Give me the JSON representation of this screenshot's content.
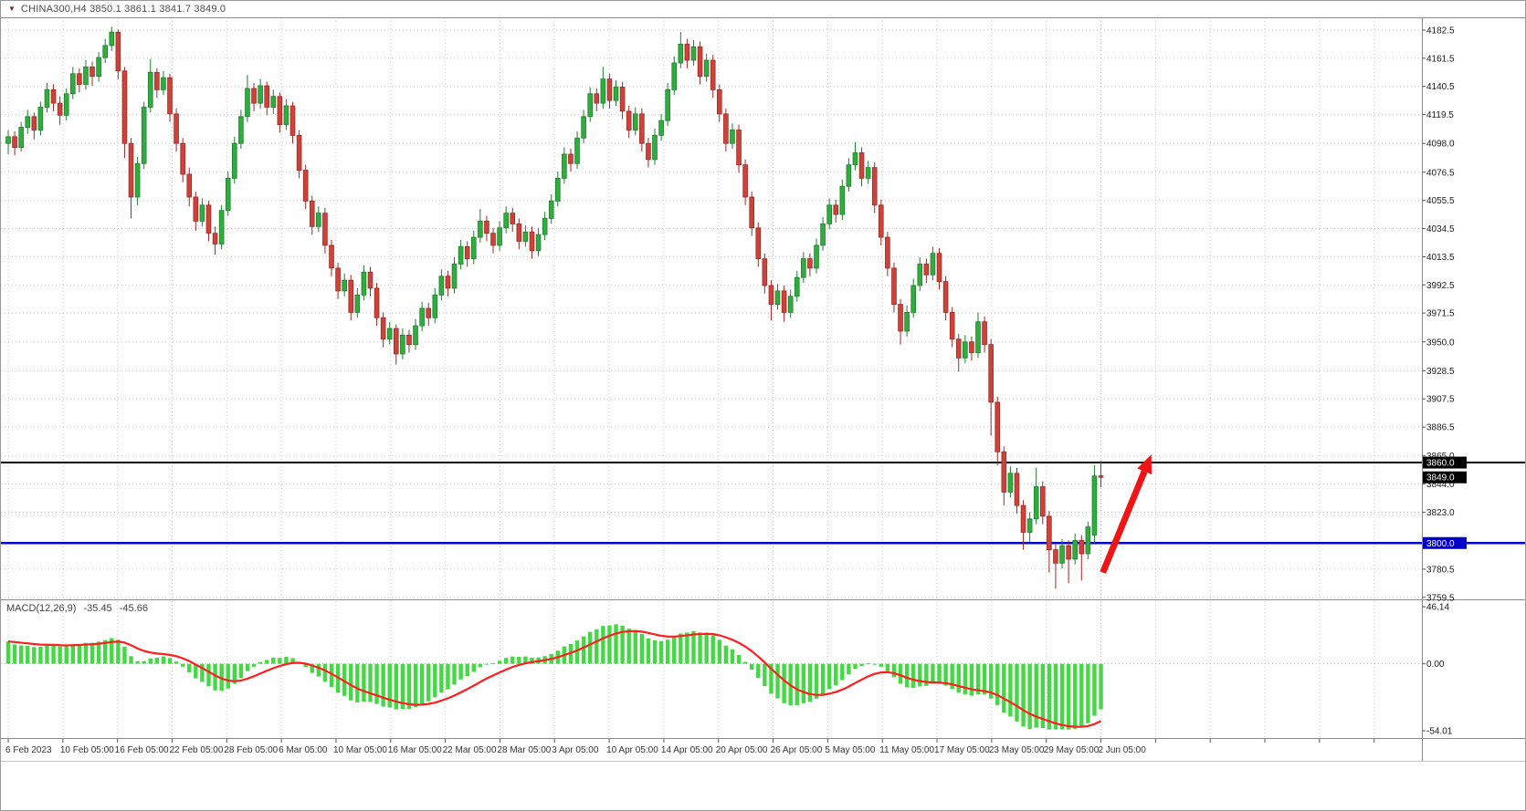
{
  "window": {
    "title": "CHINA300,H4  3850.1 3861.1 3841.7 3849.0",
    "marker_icon": "collapse-arrow"
  },
  "indicator": {
    "label": "MACD(12,26,9)",
    "macd_value": "-35.45",
    "signal_value": "-45.66",
    "params": [
      12,
      26,
      9
    ]
  },
  "colors": {
    "bull": "#2fae3e",
    "bull_border": "#1d7f2c",
    "bear": "#cf423a",
    "bear_border": "#9c2a24",
    "grid": "#c9c9c9",
    "separator": "#8a8a8a",
    "macd_hist": "#44d944",
    "macd_signal": "#ff1e1e",
    "level_black": "#000000",
    "level_blue": "#0000c8",
    "arrow": "#f01414",
    "axis_text": "#1a1a1a",
    "date_text": "#333333",
    "tag_text": "#ffffff"
  },
  "chart_data": {
    "type": "candlestick",
    "symbol": "CHINA300",
    "timeframe": "H4",
    "current_bar": {
      "open": "3850.1",
      "high": "3861.1",
      "low": "3841.7",
      "close": "3849.0"
    },
    "ylim": [
      3758,
      4192
    ],
    "y_ticks": [
      "4182.5",
      "4161.5",
      "4140.5",
      "4119.5",
      "4098.0",
      "4076.5",
      "4055.5",
      "4034.5",
      "4013.5",
      "3992.5",
      "3971.5",
      "3950.0",
      "3928.5",
      "3907.5",
      "3886.5",
      "3865.0",
      "3844.0",
      "3823.0",
      "3780.5",
      "3759.5"
    ],
    "x_labels": [
      "6 Feb 2023",
      "10 Feb 05:00",
      "16 Feb 05:00",
      "22 Feb 05:00",
      "28 Feb 05:00",
      "6 Mar 05:00",
      "10 Mar 05:00",
      "16 Mar 05:00",
      "22 Mar 05:00",
      "28 Mar 05:00",
      "3 Apr 05:00",
      "10 Apr 05:00",
      "14 Apr 05:00",
      "20 Apr 05:00",
      "26 Apr 05:00",
      "5 May 05:00",
      "11 May 05:00",
      "17 May 05:00",
      "23 May 05:00",
      "29 May 05:00",
      "2 Jun 05:00"
    ],
    "ohlc": [
      [
        4098,
        4108,
        4090,
        4103
      ],
      [
        4103,
        4107,
        4089,
        4095
      ],
      [
        4095,
        4114,
        4092,
        4110
      ],
      [
        4110,
        4123,
        4105,
        4118
      ],
      [
        4118,
        4121,
        4101,
        4108
      ],
      [
        4108,
        4129,
        4104,
        4125
      ],
      [
        4125,
        4143,
        4121,
        4138
      ],
      [
        4138,
        4142,
        4122,
        4128
      ],
      [
        4128,
        4133,
        4112,
        4119
      ],
      [
        4119,
        4139,
        4115,
        4135
      ],
      [
        4135,
        4155,
        4131,
        4150
      ],
      [
        4150,
        4154,
        4136,
        4142
      ],
      [
        4142,
        4160,
        4138,
        4155
      ],
      [
        4155,
        4159,
        4141,
        4148
      ],
      [
        4148,
        4166,
        4144,
        4162
      ],
      [
        4162,
        4176,
        4158,
        4171
      ],
      [
        4171,
        4185,
        4167,
        4181
      ],
      [
        4181,
        4183,
        4146,
        4152
      ],
      [
        4152,
        4155,
        4087,
        4098
      ],
      [
        4098,
        4102,
        4042,
        4058
      ],
      [
        4058,
        4088,
        4052,
        4083
      ],
      [
        4083,
        4129,
        4079,
        4125
      ],
      [
        4125,
        4161,
        4121,
        4151
      ],
      [
        4151,
        4154,
        4132,
        4138
      ],
      [
        4138,
        4152,
        4134,
        4147
      ],
      [
        4147,
        4150,
        4114,
        4120
      ],
      [
        4120,
        4124,
        4092,
        4098
      ],
      [
        4098,
        4102,
        4069,
        4075
      ],
      [
        4075,
        4080,
        4051,
        4058
      ],
      [
        4058,
        4062,
        4033,
        4040
      ],
      [
        4040,
        4057,
        4036,
        4052
      ],
      [
        4052,
        4055,
        4025,
        4031
      ],
      [
        4031,
        4036,
        4015,
        4023
      ],
      [
        4023,
        4052,
        4019,
        4048
      ],
      [
        4048,
        4077,
        4044,
        4072
      ],
      [
        4072,
        4103,
        4068,
        4098
      ],
      [
        4098,
        4123,
        4094,
        4118
      ],
      [
        4118,
        4149,
        4114,
        4139
      ],
      [
        4139,
        4143,
        4122,
        4128
      ],
      [
        4128,
        4146,
        4124,
        4141
      ],
      [
        4141,
        4144,
        4119,
        4125
      ],
      [
        4125,
        4138,
        4120,
        4133
      ],
      [
        4133,
        4136,
        4106,
        4112
      ],
      [
        4112,
        4131,
        4108,
        4126
      ],
      [
        4126,
        4129,
        4098,
        4104
      ],
      [
        4104,
        4108,
        4072,
        4078
      ],
      [
        4078,
        4082,
        4049,
        4055
      ],
      [
        4055,
        4059,
        4030,
        4036
      ],
      [
        4036,
        4051,
        4032,
        4046
      ],
      [
        4046,
        4050,
        4016,
        4022
      ],
      [
        4022,
        4026,
        3999,
        4005
      ],
      [
        4005,
        4009,
        3982,
        3988
      ],
      [
        3988,
        4001,
        3984,
        3996
      ],
      [
        3996,
        4000,
        3966,
        3972
      ],
      [
        3972,
        3990,
        3968,
        3985
      ],
      [
        3985,
        4007,
        3981,
        4002
      ],
      [
        4002,
        4006,
        3984,
        3990
      ],
      [
        3990,
        3994,
        3962,
        3968
      ],
      [
        3968,
        3972,
        3946,
        3952
      ],
      [
        3952,
        3965,
        3948,
        3960
      ],
      [
        3960,
        3963,
        3933,
        3941
      ],
      [
        3941,
        3960,
        3937,
        3955
      ],
      [
        3955,
        3959,
        3942,
        3948
      ],
      [
        3948,
        3967,
        3944,
        3962
      ],
      [
        3962,
        3980,
        3958,
        3975
      ],
      [
        3975,
        3979,
        3962,
        3968
      ],
      [
        3968,
        3990,
        3964,
        3985
      ],
      [
        3985,
        4004,
        3981,
        3999
      ],
      [
        3999,
        4003,
        3984,
        3990
      ],
      [
        3990,
        4013,
        3986,
        4008
      ],
      [
        4008,
        4026,
        4004,
        4021
      ],
      [
        4021,
        4025,
        4006,
        4012
      ],
      [
        4012,
        4033,
        4008,
        4028
      ],
      [
        4028,
        4049,
        4024,
        4040
      ],
      [
        4040,
        4044,
        4025,
        4031
      ],
      [
        4031,
        4035,
        4016,
        4022
      ],
      [
        4022,
        4040,
        4018,
        4035
      ],
      [
        4035,
        4051,
        4031,
        4046
      ],
      [
        4046,
        4050,
        4032,
        4038
      ],
      [
        4038,
        4042,
        4019,
        4025
      ],
      [
        4025,
        4037,
        4021,
        4032
      ],
      [
        4032,
        4036,
        4012,
        4018
      ],
      [
        4018,
        4035,
        4014,
        4030
      ],
      [
        4030,
        4047,
        4026,
        4042
      ],
      [
        4042,
        4060,
        4038,
        4055
      ],
      [
        4055,
        4077,
        4051,
        4072
      ],
      [
        4072,
        4095,
        4068,
        4090
      ],
      [
        4090,
        4094,
        4077,
        4083
      ],
      [
        4083,
        4107,
        4079,
        4102
      ],
      [
        4102,
        4123,
        4098,
        4118
      ],
      [
        4118,
        4140,
        4114,
        4135
      ],
      [
        4135,
        4139,
        4122,
        4128
      ],
      [
        4128,
        4155,
        4124,
        4146
      ],
      [
        4146,
        4150,
        4124,
        4130
      ],
      [
        4130,
        4145,
        4126,
        4140
      ],
      [
        4140,
        4144,
        4116,
        4122
      ],
      [
        4122,
        4126,
        4102,
        4108
      ],
      [
        4108,
        4125,
        4104,
        4120
      ],
      [
        4120,
        4124,
        4092,
        4098
      ],
      [
        4098,
        4102,
        4080,
        4086
      ],
      [
        4086,
        4109,
        4082,
        4104
      ],
      [
        4104,
        4120,
        4100,
        4115
      ],
      [
        4115,
        4143,
        4111,
        4138
      ],
      [
        4138,
        4163,
        4134,
        4158
      ],
      [
        4158,
        4181,
        4154,
        4172
      ],
      [
        4172,
        4176,
        4154,
        4160
      ],
      [
        4160,
        4175,
        4156,
        4170
      ],
      [
        4170,
        4174,
        4142,
        4148
      ],
      [
        4148,
        4165,
        4144,
        4160
      ],
      [
        4160,
        4164,
        4132,
        4138
      ],
      [
        4138,
        4142,
        4114,
        4120
      ],
      [
        4120,
        4124,
        4092,
        4098
      ],
      [
        4098,
        4113,
        4094,
        4108
      ],
      [
        4108,
        4112,
        4076,
        4082
      ],
      [
        4082,
        4086,
        4052,
        4058
      ],
      [
        4058,
        4062,
        4029,
        4035
      ],
      [
        4035,
        4039,
        4006,
        4012
      ],
      [
        4012,
        4016,
        3986,
        3992
      ],
      [
        3992,
        3996,
        3966,
        3978
      ],
      [
        3978,
        3993,
        3974,
        3988
      ],
      [
        3988,
        3992,
        3965,
        3972
      ],
      [
        3972,
        3989,
        3968,
        3984
      ],
      [
        3984,
        4003,
        3980,
        3998
      ],
      [
        3998,
        4017,
        3994,
        4012
      ],
      [
        4012,
        4016,
        3999,
        4005
      ],
      [
        4005,
        4027,
        4001,
        4022
      ],
      [
        4022,
        4043,
        4018,
        4038
      ],
      [
        4038,
        4057,
        4034,
        4052
      ],
      [
        4052,
        4056,
        4039,
        4045
      ],
      [
        4045,
        4071,
        4041,
        4066
      ],
      [
        4066,
        4087,
        4062,
        4082
      ],
      [
        4082,
        4099,
        4078,
        4091
      ],
      [
        4091,
        4095,
        4066,
        4072
      ],
      [
        4072,
        4085,
        4068,
        4080
      ],
      [
        4080,
        4084,
        4046,
        4052
      ],
      [
        4052,
        4056,
        4022,
        4028
      ],
      [
        4028,
        4032,
        3999,
        4005
      ],
      [
        4005,
        4009,
        3972,
        3978
      ],
      [
        3978,
        3982,
        3948,
        3958
      ],
      [
        3958,
        3977,
        3954,
        3972
      ],
      [
        3972,
        3997,
        3968,
        3992
      ],
      [
        3992,
        4013,
        3988,
        4008
      ],
      [
        4008,
        4012,
        3994,
        4000
      ],
      [
        4000,
        4021,
        3996,
        4016
      ],
      [
        4016,
        4020,
        3989,
        3995
      ],
      [
        3995,
        3999,
        3966,
        3972
      ],
      [
        3972,
        3976,
        3946,
        3952
      ],
      [
        3952,
        3956,
        3928,
        3938
      ],
      [
        3938,
        3955,
        3934,
        3950
      ],
      [
        3950,
        3954,
        3936,
        3942
      ],
      [
        3942,
        3972,
        3938,
        3965
      ],
      [
        3965,
        3969,
        3942,
        3948
      ],
      [
        3948,
        3952,
        3880,
        3905
      ],
      [
        3905,
        3909,
        3858,
        3868
      ],
      [
        3868,
        3872,
        3828,
        3838
      ],
      [
        3838,
        3857,
        3834,
        3852
      ],
      [
        3852,
        3856,
        3822,
        3828
      ],
      [
        3828,
        3832,
        3795,
        3808
      ],
      [
        3808,
        3823,
        3801,
        3818
      ],
      [
        3818,
        3856,
        3814,
        3842
      ],
      [
        3842,
        3846,
        3814,
        3820
      ],
      [
        3820,
        3824,
        3778,
        3795
      ],
      [
        3795,
        3799,
        3766,
        3785
      ],
      [
        3785,
        3803,
        3781,
        3798
      ],
      [
        3798,
        3802,
        3770,
        3788
      ],
      [
        3788,
        3807,
        3784,
        3802
      ],
      [
        3802,
        3806,
        3772,
        3792
      ],
      [
        3792,
        3816,
        3788,
        3812
      ],
      [
        3806,
        3858,
        3800,
        3850
      ],
      [
        3850.1,
        3861.1,
        3841.7,
        3849.0
      ]
    ],
    "levels": [
      {
        "price": 3860.0,
        "label": "3860.0",
        "color": "#000000",
        "line": true
      },
      {
        "price": 3849.0,
        "label": "3849.0",
        "color": "#000000",
        "line": false
      },
      {
        "price": 3800.0,
        "label": "3800.0",
        "color": "#0000c8",
        "line": true
      }
    ],
    "arrow": {
      "from": {
        "bar": 169.3,
        "price": 3778
      },
      "to": {
        "bar": 176.8,
        "price": 3866
      }
    },
    "macd": {
      "type": "histogram+line",
      "ylim": [
        -54.01,
        46.14
      ],
      "y_ticks": [
        "46.14",
        "0.00",
        "-54.01"
      ],
      "last_macd": -35.45,
      "last_signal": -45.66,
      "derived_from": "ohlc closes, EMA 12/26 minus, signal EMA 9"
    }
  }
}
